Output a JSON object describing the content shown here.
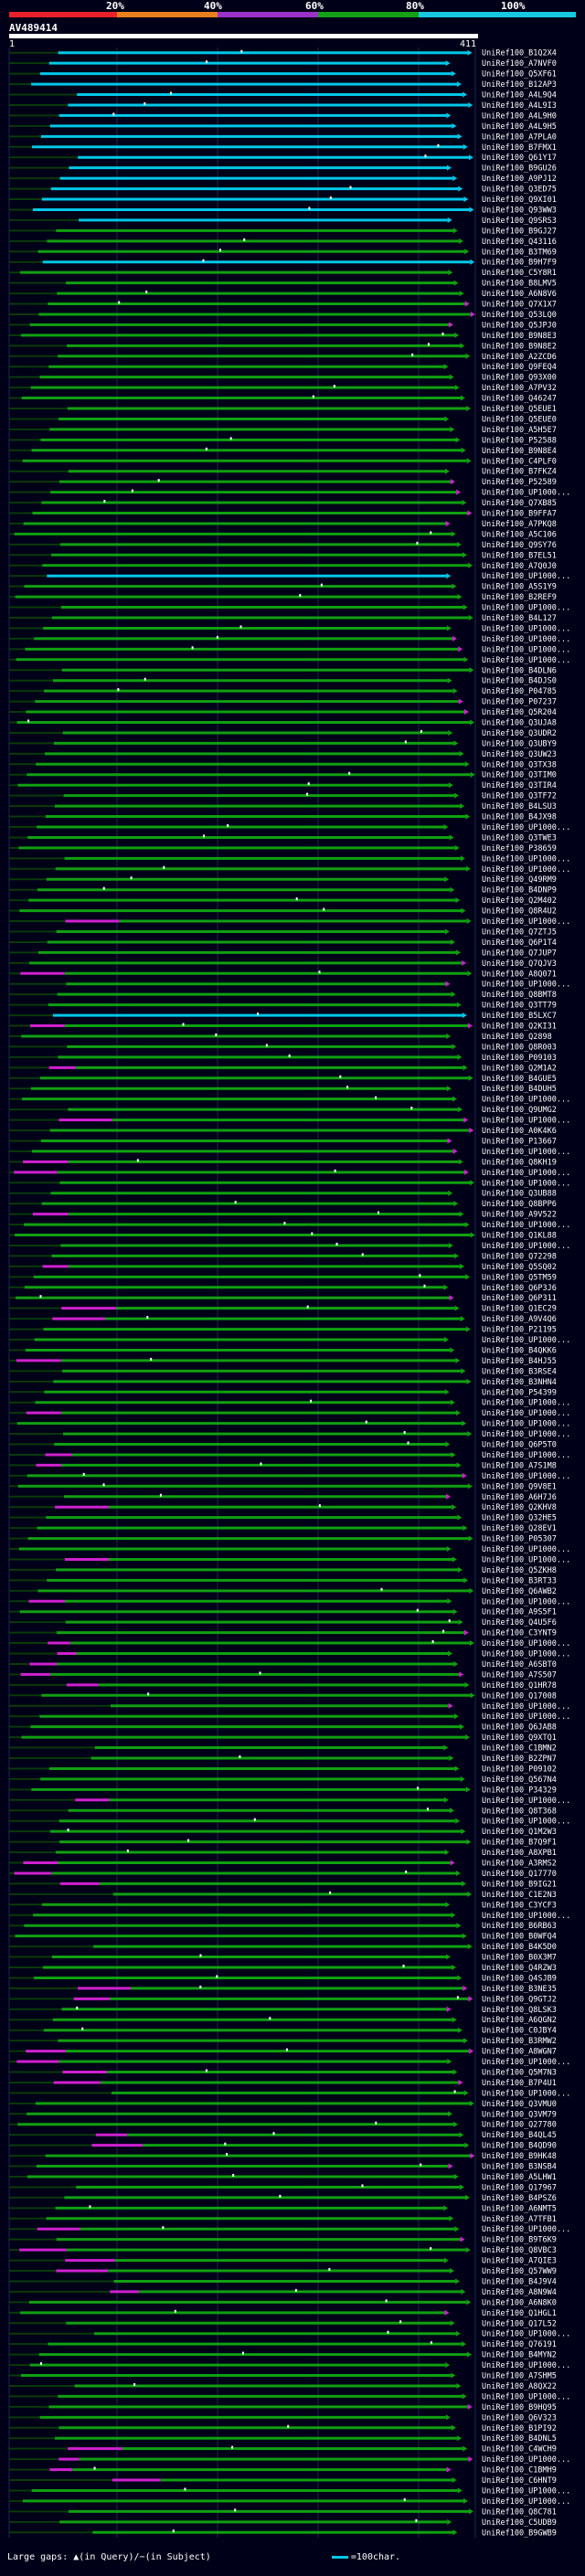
{
  "header": {
    "percent_marks": [
      "20%",
      "40%",
      "60%",
      "80%",
      "100%"
    ],
    "band_colors": [
      "#e8202a",
      "#e87f1c",
      "#9a32c8",
      "#16a016",
      "#16c8e0"
    ],
    "query_id": "AV489414",
    "start_label": "1",
    "end_label": "411"
  },
  "legend": {
    "large_gaps": "Large gaps:",
    "query_gap": "(in Query)",
    "subject_gap": "(in Subject)",
    "scale": "=100char."
  },
  "colors": {
    "cyan": "#00c8e8",
    "green": "#10a010",
    "magenta": "#d020d0",
    "dark": "#0a3a0a"
  },
  "hits": [
    {
      "label": "UniRef100_B1Q2X4",
      "c": "cyan"
    },
    {
      "label": "UniRef100_A7NVF0",
      "c": "cyan"
    },
    {
      "label": "UniRef100_Q5XF61",
      "c": "cyan"
    },
    {
      "label": "UniRef100_B12AP3",
      "c": "cyan"
    },
    {
      "label": "UniRef100_A4L9Q4",
      "c": "cyan"
    },
    {
      "label": "UniRef100_A4L9I3",
      "c": "cyan"
    },
    {
      "label": "UniRef100_A4L9H0",
      "c": "cyan"
    },
    {
      "label": "UniRef100_A4L9H5",
      "c": "cyan"
    },
    {
      "label": "UniRef100_A7PLA0",
      "c": "cyan"
    },
    {
      "label": "UniRef100_B7FMX1",
      "c": "cyan"
    },
    {
      "label": "UniRef100_Q61Y17",
      "c": "cyan"
    },
    {
      "label": "UniRef100_B9GU26",
      "c": "cyan"
    },
    {
      "label": "UniRef100_A9PJ12",
      "c": "cyan"
    },
    {
      "label": "UniRef100_Q3ED75",
      "c": "cyan"
    },
    {
      "label": "UniRef100_Q9XI01",
      "c": "cyan"
    },
    {
      "label": "UniRef100_Q93WW3",
      "c": "cyan"
    },
    {
      "label": "UniRef100_Q9SRS3",
      "c": "cyan"
    },
    {
      "label": "UniRef100_B9GJ27",
      "c": "green"
    },
    {
      "label": "UniRef100_Q43116",
      "c": "green"
    },
    {
      "label": "UniRef100_B3TM69",
      "c": "green"
    },
    {
      "label": "UniRef100_B9H7F9",
      "c": "cyan"
    },
    {
      "label": "UniRef100_C5Y8R1",
      "c": "green"
    },
    {
      "label": "UniRef100_B8LMV5",
      "c": "green"
    },
    {
      "label": "UniRef100_A6N8V6",
      "c": "green"
    },
    {
      "label": "UniRef100_Q7X1X7",
      "c": "green"
    },
    {
      "label": "UniRef100_Q53LQ0",
      "c": "green"
    },
    {
      "label": "UniRef100_Q5JPJ0",
      "c": "green"
    },
    {
      "label": "UniRef100_B9N8E3",
      "c": "green"
    },
    {
      "label": "UniRef100_B9N8E2",
      "c": "green"
    },
    {
      "label": "UniRef100_A2ZCD6",
      "c": "green"
    },
    {
      "label": "UniRef100_Q9FEQ4",
      "c": "green"
    },
    {
      "label": "UniRef100_Q93X00",
      "c": "green"
    },
    {
      "label": "UniRef100_A7PV32",
      "c": "green"
    },
    {
      "label": "UniRef100_Q46247",
      "c": "green"
    },
    {
      "label": "UniRef100_Q5EUE1",
      "c": "green"
    },
    {
      "label": "UniRef100_Q5EUE0",
      "c": "green"
    },
    {
      "label": "UniRef100_A5H5E7",
      "c": "green"
    },
    {
      "label": "UniRef100_P52588",
      "c": "green"
    },
    {
      "label": "UniRef100_B9N8E4",
      "c": "green"
    },
    {
      "label": "UniRef100_C4PLF0",
      "c": "green"
    },
    {
      "label": "UniRef100_B7FKZ4",
      "c": "green"
    },
    {
      "label": "UniRef100_P52589",
      "c": "green"
    },
    {
      "label": "UniRef100_UP1000...",
      "c": "green"
    },
    {
      "label": "UniRef100_Q7XB85",
      "c": "green"
    },
    {
      "label": "UniRef100_B9FFA7",
      "c": "green"
    },
    {
      "label": "UniRef100_A7PKQ8",
      "c": "green"
    },
    {
      "label": "UniRef100_A5C106",
      "c": "green"
    },
    {
      "label": "UniRef100_Q9SY76",
      "c": "green"
    },
    {
      "label": "UniRef100_B7EL51",
      "c": "green"
    },
    {
      "label": "UniRef100_A7Q0J0",
      "c": "green"
    },
    {
      "label": "UniRef100_UP1000...",
      "c": "cyan"
    },
    {
      "label": "UniRef100_A5S1Y9",
      "c": "green"
    },
    {
      "label": "UniRef100_B2REF9",
      "c": "green"
    },
    {
      "label": "UniRef100_UP1000...",
      "c": "green"
    },
    {
      "label": "UniRef100_B4L127",
      "c": "green"
    },
    {
      "label": "UniRef100_UP1000...",
      "c": "green"
    },
    {
      "label": "UniRef100_UP1000...",
      "c": "green"
    },
    {
      "label": "UniRef100_UP1000...",
      "c": "green"
    },
    {
      "label": "UniRef100_UP1000...",
      "c": "green"
    },
    {
      "label": "UniRef100_B4DLN6",
      "c": "green"
    },
    {
      "label": "UniRef100_B4DJS0",
      "c": "green"
    },
    {
      "label": "UniRef100_P04785",
      "c": "green"
    },
    {
      "label": "UniRef100_P07237",
      "c": "green"
    },
    {
      "label": "UniRef100_Q5R204",
      "c": "green"
    },
    {
      "label": "UniRef100_Q3UJA8",
      "c": "green"
    },
    {
      "label": "UniRef100_Q3UDR2",
      "c": "green"
    },
    {
      "label": "UniRef100_Q3UBY9",
      "c": "green"
    },
    {
      "label": "UniRef100_Q3UW23",
      "c": "green"
    },
    {
      "label": "UniRef100_Q3TX38",
      "c": "green"
    },
    {
      "label": "UniRef100_Q3TIM0",
      "c": "green"
    },
    {
      "label": "UniRef100_Q3TIR4",
      "c": "green"
    },
    {
      "label": "UniRef100_Q3TF72",
      "c": "green"
    },
    {
      "label": "UniRef100_B4LSU3",
      "c": "green"
    },
    {
      "label": "UniRef100_B4JX98",
      "c": "green"
    },
    {
      "label": "UniRef100_UP1000...",
      "c": "green"
    },
    {
      "label": "UniRef100_Q3TWE3",
      "c": "green"
    },
    {
      "label": "UniRef100_P38659",
      "c": "green"
    },
    {
      "label": "UniRef100_UP1000...",
      "c": "green"
    },
    {
      "label": "UniRef100_UP1000...",
      "c": "green"
    },
    {
      "label": "UniRef100_Q49RM9",
      "c": "green"
    },
    {
      "label": "UniRef100_B4DNP9",
      "c": "green"
    },
    {
      "label": "UniRef100_Q2M402",
      "c": "green"
    },
    {
      "label": "UniRef100_Q8R4U2",
      "c": "green"
    },
    {
      "label": "UniRef100_UP1000...",
      "c": "green"
    },
    {
      "label": "UniRef100_Q7ZTJ5",
      "c": "green"
    },
    {
      "label": "UniRef100_Q6P1T4",
      "c": "green"
    },
    {
      "label": "UniRef100_Q7JUP7",
      "c": "green"
    },
    {
      "label": "UniRef100_Q7QJV3",
      "c": "green"
    },
    {
      "label": "UniRef100_A8Q071",
      "c": "green"
    },
    {
      "label": "UniRef100_UP1000...",
      "c": "green"
    },
    {
      "label": "UniRef100_Q8BMT8",
      "c": "green"
    },
    {
      "label": "UniRef100_Q3TT79",
      "c": "green"
    },
    {
      "label": "UniRef100_B5LXC7",
      "c": "cyan"
    },
    {
      "label": "UniRef100_Q2KI31",
      "c": "green"
    },
    {
      "label": "UniRef100_Q2898",
      "c": "green"
    },
    {
      "label": "UniRef100_Q8R003",
      "c": "green"
    },
    {
      "label": "UniRef100_P09103",
      "c": "green"
    },
    {
      "label": "UniRef100_Q2M1A2",
      "c": "green"
    },
    {
      "label": "UniRef100_B4GUE5",
      "c": "green"
    },
    {
      "label": "UniRef100_B4DUH5",
      "c": "green"
    },
    {
      "label": "UniRef100_UP1000...",
      "c": "green"
    },
    {
      "label": "UniRef100_Q9UMG2",
      "c": "green"
    },
    {
      "label": "UniRef100_UP1000...",
      "c": "green"
    },
    {
      "label": "UniRef100_A0K4K6",
      "c": "green"
    },
    {
      "label": "UniRef100_P13667",
      "c": "green"
    },
    {
      "label": "UniRef100_UP1000...",
      "c": "green"
    },
    {
      "label": "UniRef100_Q8KH19",
      "c": "green"
    },
    {
      "label": "UniRef100_UP1000...",
      "c": "green"
    },
    {
      "label": "UniRef100_UP1000...",
      "c": "green"
    },
    {
      "label": "UniRef100_Q3UB88",
      "c": "green"
    },
    {
      "label": "UniRef100_Q8BPP6",
      "c": "green"
    },
    {
      "label": "UniRef100_A9V522",
      "c": "green"
    },
    {
      "label": "UniRef100_UP1000...",
      "c": "green"
    },
    {
      "label": "UniRef100_Q1KL88",
      "c": "green"
    },
    {
      "label": "UniRef100_UP1000...",
      "c": "green"
    },
    {
      "label": "UniRef100_Q72298",
      "c": "green"
    },
    {
      "label": "UniRef100_Q5SQ02",
      "c": "green"
    },
    {
      "label": "UniRef100_Q5TM59",
      "c": "green"
    },
    {
      "label": "UniRef100_Q6P3J6",
      "c": "green"
    },
    {
      "label": "UniRef100_Q6P311",
      "c": "green"
    },
    {
      "label": "UniRef100_Q1EC29",
      "c": "green"
    },
    {
      "label": "UniRef100_A9V4Q6",
      "c": "green"
    },
    {
      "label": "UniRef100_P21195",
      "c": "green"
    },
    {
      "label": "UniRef100_UP1000...",
      "c": "green"
    },
    {
      "label": "UniRef100_B4QKK6",
      "c": "green"
    },
    {
      "label": "UniRef100_B4HJ55",
      "c": "green"
    },
    {
      "label": "UniRef100_B3RSE4",
      "c": "green"
    },
    {
      "label": "UniRef100_B3NHN4",
      "c": "green"
    },
    {
      "label": "UniRef100_P54399",
      "c": "green"
    },
    {
      "label": "UniRef100_UP1000...",
      "c": "green"
    },
    {
      "label": "UniRef100_UP1000...",
      "c": "green"
    },
    {
      "label": "UniRef100_UP1000...",
      "c": "green"
    },
    {
      "label": "UniRef100_UP1000...",
      "c": "green"
    },
    {
      "label": "UniRef100_Q6P5T0",
      "c": "green"
    },
    {
      "label": "UniRef100_UP1000...",
      "c": "green"
    },
    {
      "label": "UniRef100_A7S1M8",
      "c": "green"
    },
    {
      "label": "UniRef100_UP1000...",
      "c": "green"
    },
    {
      "label": "UniRef100_Q9V8E1",
      "c": "green"
    },
    {
      "label": "UniRef100_A6H7J6",
      "c": "green"
    },
    {
      "label": "UniRef100_Q2KHV8",
      "c": "green"
    },
    {
      "label": "UniRef100_Q32HE5",
      "c": "green"
    },
    {
      "label": "UniRef100_Q28EV1",
      "c": "green"
    },
    {
      "label": "UniRef100_P05307",
      "c": "green"
    },
    {
      "label": "UniRef100_UP1000...",
      "c": "green"
    },
    {
      "label": "UniRef100_UP1000...",
      "c": "green"
    },
    {
      "label": "UniRef100_Q5ZKH8",
      "c": "green"
    },
    {
      "label": "UniRef100_B3RT33",
      "c": "green"
    },
    {
      "label": "UniRef100_Q6AWB2",
      "c": "green"
    },
    {
      "label": "UniRef100_UP1000...",
      "c": "green"
    },
    {
      "label": "UniRef100_A9S5F1",
      "c": "green"
    },
    {
      "label": "UniRef100_Q4U5F6",
      "c": "green"
    },
    {
      "label": "UniRef100_C3YNT9",
      "c": "green"
    },
    {
      "label": "UniRef100_UP1000...",
      "c": "green"
    },
    {
      "label": "UniRef100_UP1000...",
      "c": "green"
    },
    {
      "label": "UniRef100_A6SBT0",
      "c": "green"
    },
    {
      "label": "UniRef100_A7S507",
      "c": "green"
    },
    {
      "label": "UniRef100_Q1HR78",
      "c": "green"
    },
    {
      "label": "UniRef100_Q17008",
      "c": "green"
    },
    {
      "label": "UniRef100_UP1000...",
      "c": "green"
    },
    {
      "label": "UniRef100_UP1000...",
      "c": "green"
    },
    {
      "label": "UniRef100_Q6JAB8",
      "c": "green"
    },
    {
      "label": "UniRef100_Q9XTQ1",
      "c": "green"
    },
    {
      "label": "UniRef100_C1BMN2",
      "c": "green"
    },
    {
      "label": "UniRef100_B2ZPN7",
      "c": "green"
    },
    {
      "label": "UniRef100_P09102",
      "c": "green"
    },
    {
      "label": "UniRef100_Q567N4",
      "c": "green"
    },
    {
      "label": "UniRef100_P34329",
      "c": "green"
    },
    {
      "label": "UniRef100_UP1000...",
      "c": "green"
    },
    {
      "label": "UniRef100_Q8T368",
      "c": "green"
    },
    {
      "label": "UniRef100_UP1000...",
      "c": "green"
    },
    {
      "label": "UniRef100_Q1M2W3",
      "c": "green"
    },
    {
      "label": "UniRef100_B7Q9F1",
      "c": "green"
    },
    {
      "label": "UniRef100_A8XPB1",
      "c": "green"
    },
    {
      "label": "UniRef100_A3RMS2",
      "c": "green"
    },
    {
      "label": "UniRef100_Q17770",
      "c": "green"
    },
    {
      "label": "UniRef100_B9IG21",
      "c": "green"
    },
    {
      "label": "UniRef100_C1E2N3",
      "c": "green"
    },
    {
      "label": "UniRef100_C3YCF3",
      "c": "green"
    },
    {
      "label": "UniRef100_UP1000...",
      "c": "green"
    },
    {
      "label": "UniRef100_B6RB63",
      "c": "green"
    },
    {
      "label": "UniRef100_B0WFQ4",
      "c": "green"
    },
    {
      "label": "UniRef100_B4K5D0",
      "c": "green"
    },
    {
      "label": "UniRef100_B0X3M7",
      "c": "green"
    },
    {
      "label": "UniRef100_Q4RZW3",
      "c": "green"
    },
    {
      "label": "UniRef100_Q4SJB9",
      "c": "green"
    },
    {
      "label": "UniRef100_B3NE35",
      "c": "green"
    },
    {
      "label": "UniRef100_Q9GTJ2",
      "c": "green"
    },
    {
      "label": "UniRef100_Q8LSK3",
      "c": "green"
    },
    {
      "label": "UniRef100_A6QGN2",
      "c": "green"
    },
    {
      "label": "UniRef100_C0JBY4",
      "c": "green"
    },
    {
      "label": "UniRef100_B3RMW2",
      "c": "green"
    },
    {
      "label": "UniRef100_A8WGN7",
      "c": "green"
    },
    {
      "label": "UniRef100_UP1000...",
      "c": "green"
    },
    {
      "label": "UniRef100_Q5M7N3",
      "c": "green"
    },
    {
      "label": "UniRef100_B7P4U1",
      "c": "green"
    },
    {
      "label": "UniRef100_UP1000...",
      "c": "green"
    },
    {
      "label": "UniRef100_Q3VMU0",
      "c": "green"
    },
    {
      "label": "UniRef100_Q3VM79",
      "c": "green"
    },
    {
      "label": "UniRef100_Q27780",
      "c": "green"
    },
    {
      "label": "UniRef100_B4QL45",
      "c": "green"
    },
    {
      "label": "UniRef100_B4QD90",
      "c": "green"
    },
    {
      "label": "UniRef100_B9HK48",
      "c": "green"
    },
    {
      "label": "UniRef100_B3NSB4",
      "c": "green"
    },
    {
      "label": "UniRef100_A5LHW1",
      "c": "green"
    },
    {
      "label": "UniRef100_Q17967",
      "c": "green"
    },
    {
      "label": "UniRef100_B4PSZ6",
      "c": "green"
    },
    {
      "label": "UniRef100_A6NMT5",
      "c": "green"
    },
    {
      "label": "UniRef100_A7TFB1",
      "c": "green"
    },
    {
      "label": "UniRef100_UP1000...",
      "c": "green"
    },
    {
      "label": "UniRef100_B9T6K9",
      "c": "green"
    },
    {
      "label": "UniRef100_Q8VBC3",
      "c": "green"
    },
    {
      "label": "UniRef100_A7QIE3",
      "c": "green"
    },
    {
      "label": "UniRef100_Q57WW9",
      "c": "green"
    },
    {
      "label": "UniRef100_B4J9V4",
      "c": "green"
    },
    {
      "label": "UniRef100_A8N9W4",
      "c": "green"
    },
    {
      "label": "UniRef100_A6N8K0",
      "c": "green"
    },
    {
      "label": "UniRef100_Q1HGL1",
      "c": "green"
    },
    {
      "label": "UniRef100_Q17L52",
      "c": "green"
    },
    {
      "label": "UniRef100_UP1000...",
      "c": "green"
    },
    {
      "label": "UniRef100_Q76191",
      "c": "green"
    },
    {
      "label": "UniRef100_B4MYN2",
      "c": "green"
    },
    {
      "label": "UniRef100_UP1000...",
      "c": "green"
    },
    {
      "label": "UniRef100_A7SHM5",
      "c": "green"
    },
    {
      "label": "UniRef100_A8QX22",
      "c": "green"
    },
    {
      "label": "UniRef100_UP1000...",
      "c": "green"
    },
    {
      "label": "UniRef100_B9HQ95",
      "c": "green"
    },
    {
      "label": "UniRef100_Q6V323",
      "c": "green"
    },
    {
      "label": "UniRef100_B1PI92",
      "c": "green"
    },
    {
      "label": "UniRef100_B4DNL5",
      "c": "green"
    },
    {
      "label": "UniRef100_C4WCH9",
      "c": "green"
    },
    {
      "label": "UniRef100_UP1000...",
      "c": "green"
    },
    {
      "label": "UniRef100_C1BMH9",
      "c": "green"
    },
    {
      "label": "UniRef100_C6HNT9",
      "c": "green"
    },
    {
      "label": "UniRef100_UP1000...",
      "c": "green"
    },
    {
      "label": "UniRef100_UP1000...",
      "c": "green"
    },
    {
      "label": "UniRef100_Q8C781",
      "c": "green"
    },
    {
      "label": "UniRef100_C5UDB9",
      "c": "green"
    },
    {
      "label": "UniRef100_B9GWB9",
      "c": "green"
    }
  ]
}
